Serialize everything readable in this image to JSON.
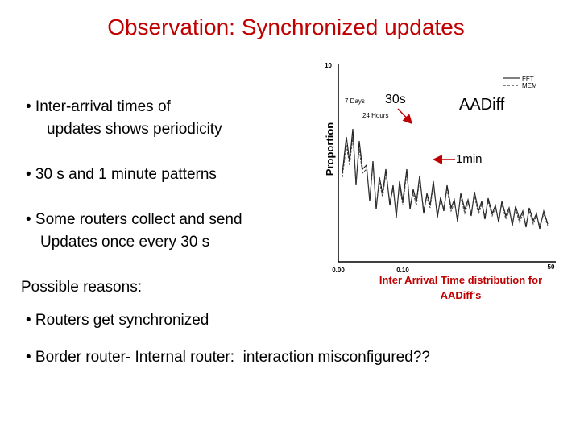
{
  "title": "Observation: Synchronized updates",
  "bullets": [
    "• Inter-arrival times of",
    "updates shows periodicity",
    "• 30 s and 1 minute patterns",
    "• Some routers collect and send",
    "Updates once every 30 s"
  ],
  "reasons_heading": "Possible reasons:",
  "reasons": [
    "• Routers get synchronized",
    "• Border router- Internal router:  interaction misconfigured??"
  ],
  "figure": {
    "y_label": "Proportion",
    "y_top": "10",
    "x_ticks": [
      "0.00",
      "0.10",
      "50"
    ],
    "legend": [
      "FFT",
      "MEM"
    ],
    "period_labels": [
      "7 Days",
      "24 Hours"
    ],
    "callouts": [
      "30s",
      "AADiff",
      "1min"
    ],
    "caption": [
      "Inter Arrival Time distribution for",
      "AADiff's"
    ]
  }
}
